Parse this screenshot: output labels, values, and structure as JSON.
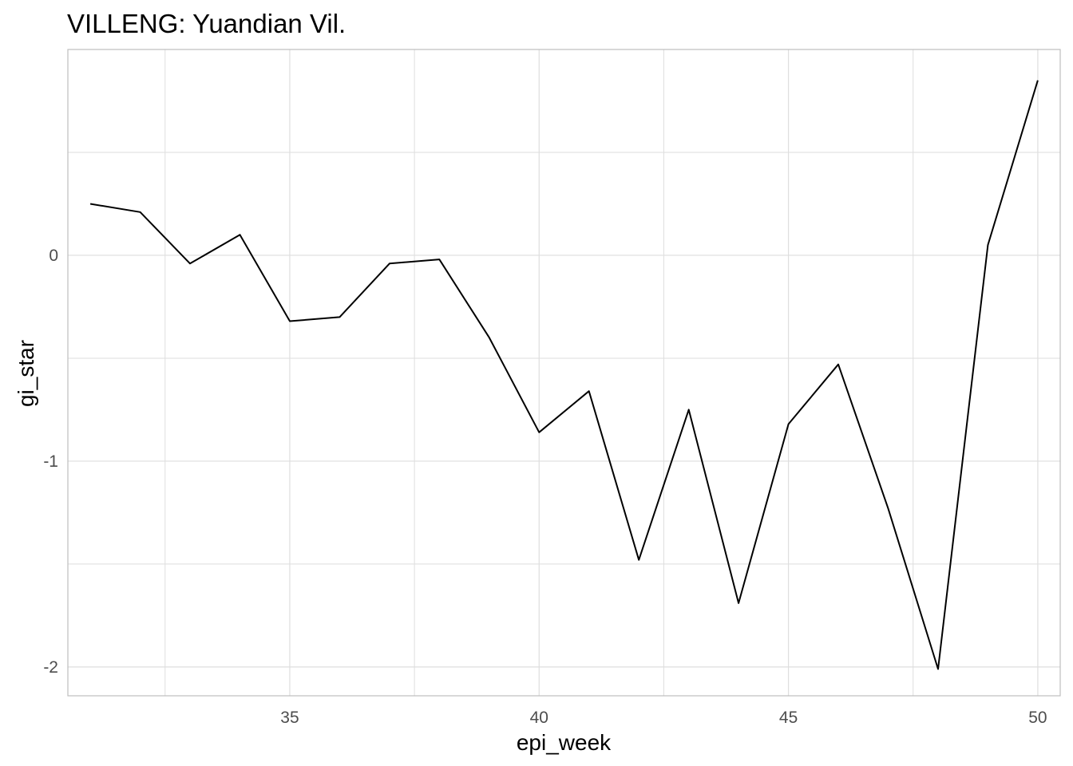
{
  "chart_data": {
    "type": "line",
    "title": "VILLENG: Yuandian Vil.",
    "xlabel": "epi_week",
    "ylabel": "gi_star",
    "x_ticks": [
      "35",
      "40",
      "45",
      "50"
    ],
    "y_ticks": [
      "0",
      "-1",
      "-2"
    ],
    "xlim": [
      30.55,
      50.45
    ],
    "ylim": [
      -2.14,
      1.0
    ],
    "grid": true,
    "series": [
      {
        "x": [
          31,
          32,
          33,
          34,
          35,
          36,
          37,
          38,
          39,
          40,
          41,
          42,
          43,
          44,
          45,
          46,
          47,
          48,
          49,
          50
        ],
        "values": [
          0.25,
          0.21,
          -0.04,
          0.1,
          -0.32,
          -0.3,
          -0.04,
          -0.02,
          -0.4,
          -0.86,
          -0.66,
          -1.48,
          -0.75,
          -1.69,
          -0.82,
          -0.53,
          -1.23,
          -2.01,
          0.05,
          0.85
        ]
      }
    ],
    "colors": {
      "line": "#000000",
      "grid": "#dedede",
      "panel_border": "#bdbdbd"
    }
  }
}
